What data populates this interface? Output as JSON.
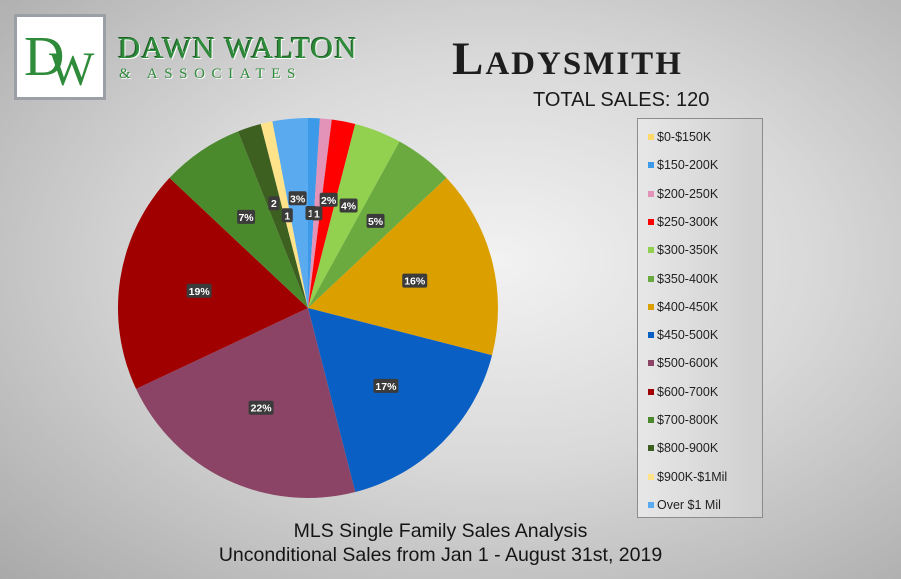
{
  "brand": {
    "initials": "DW",
    "name": "DAWN WALTON",
    "sub": "& ASSOCIATES"
  },
  "title": "Ladysmith",
  "total_sales": "TOTAL SALES: 120",
  "footer": {
    "line1": "MLS Single Family Sales Analysis",
    "line2": "Unconditional Sales from Jan 1 - August 31st, 2019"
  },
  "colors": {
    "$0-$150K": "#ffd966",
    "$150-200K": "#3c9ae8",
    "$200-250K": "#e392b8",
    "$250-300K": "#ff0000",
    "$300-350K": "#92d050",
    "$350-400K": "#6aaa3e",
    "$400-450K": "#dba000",
    "$450-500K": "#0a5fc4",
    "$500-600K": "#8b4466",
    "$600-700K": "#a10000",
    "$700-800K": "#4b8a2c",
    "$800-900K": "#3d6020",
    "$900K-$1Mil": "#ffe38a",
    "Over $1 Mil": "#5aaaf0"
  },
  "chart_data": {
    "type": "pie",
    "title": "Ladysmith",
    "legend_placement": "right",
    "categories": [
      "$0-$150K",
      "$150-200K",
      "$200-250K",
      "$250-300K",
      "$300-350K",
      "$350-400K",
      "$400-450K",
      "$450-500K",
      "$500-600K",
      "$600-700K",
      "$700-800K",
      "$800-900K",
      "$900K-$1Mil",
      "Over $1 Mil"
    ],
    "values": [
      0,
      1,
      1,
      2,
      4,
      5,
      16,
      17,
      22,
      19,
      7,
      2,
      1,
      3
    ],
    "labels": [
      "",
      "1",
      "1",
      "2%",
      "4%",
      "5%",
      "16%",
      "17%",
      "22%",
      "19%",
      "7%",
      "2",
      "1",
      "3%"
    ]
  }
}
